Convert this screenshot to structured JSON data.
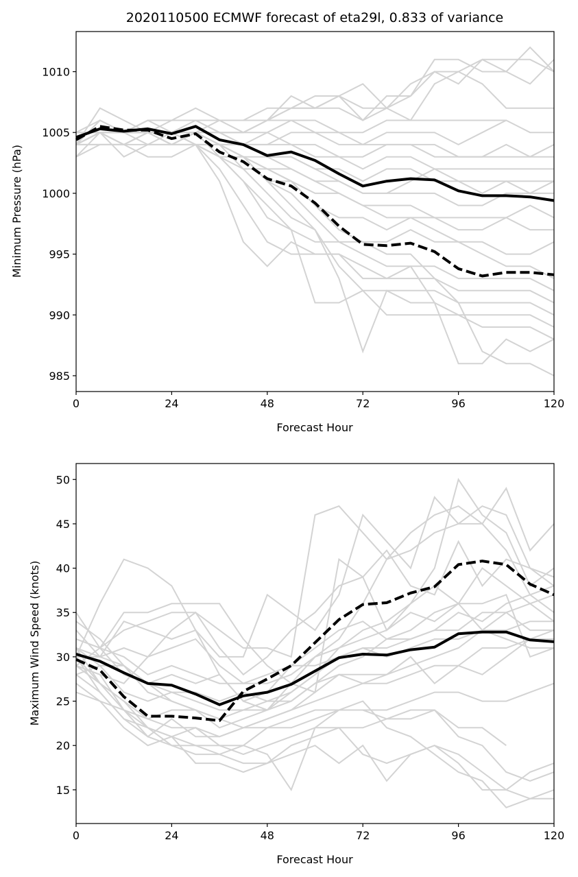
{
  "chart_data": [
    {
      "type": "line",
      "title": "2020110500 ECMWF forecast of eta29l, 0.833 of variance",
      "xlabel": "Forecast Hour",
      "ylabel": "Minimum Pressure (hPa)",
      "xlim": [
        0,
        120
      ],
      "ylim": [
        983.7,
        1013.3
      ],
      "xticks": [
        0,
        24,
        48,
        72,
        96,
        120
      ],
      "xtick_labels": [
        "0",
        "24",
        "48",
        "72",
        "96",
        "120"
      ],
      "yticks": [
        985,
        990,
        995,
        1000,
        1005,
        1010
      ],
      "ytick_labels": [
        "985",
        "990",
        "995",
        "1000",
        "1005",
        "1010"
      ],
      "grid": false,
      "x": [
        0,
        6,
        12,
        18,
        24,
        30,
        36,
        42,
        48,
        54,
        60,
        66,
        72,
        78,
        84,
        90,
        96,
        102,
        108,
        114,
        120
      ],
      "series": [
        {
          "name": "ensemble-mean",
          "style": "solid",
          "color": "#000000",
          "values": [
            1004.6,
            1005.3,
            1005.1,
            1005.3,
            1004.9,
            1005.5,
            1004.4,
            1004.0,
            1003.1,
            1003.4,
            1002.7,
            1001.6,
            1000.6,
            1001.0,
            1001.2,
            1001.1,
            1000.2,
            999.8,
            999.8,
            999.7,
            999.4
          ]
        },
        {
          "name": "reconstruction",
          "style": "dashed",
          "color": "#000000",
          "values": [
            1004.4,
            1005.5,
            1005.2,
            1005.2,
            1004.5,
            1004.9,
            1003.4,
            1002.6,
            1001.2,
            1000.6,
            999.2,
            997.3,
            995.8,
            995.7,
            995.9,
            995.2,
            993.8,
            993.2,
            993.5,
            993.5,
            993.3
          ]
        }
      ],
      "members_color": "#d3d3d3",
      "members": [
        [
          1004,
          1006,
          1005,
          1006,
          1006,
          1006,
          1006,
          1006,
          1006,
          1007,
          1007,
          1008,
          1007,
          1007,
          1009,
          1010,
          1010,
          1011,
          1011,
          1011,
          1010
        ],
        [
          1005,
          1005,
          1004,
          1005,
          1005,
          1005,
          1006,
          1006,
          1007,
          1007,
          1008,
          1008,
          1006,
          1008,
          1008,
          1011,
          1011,
          1010,
          1010,
          1012,
          1010
        ],
        [
          1005,
          1006,
          1005,
          1005,
          1006,
          1006,
          1005,
          1005,
          1006,
          1008,
          1007,
          1008,
          1009,
          1007,
          1008,
          1010,
          1009,
          1011,
          1010,
          1009,
          1011
        ],
        [
          1004,
          1005,
          1005,
          1006,
          1006,
          1007,
          1006,
          1006,
          1006,
          1007,
          1007,
          1007,
          1006,
          1007,
          1006,
          1009,
          1010,
          1009,
          1007,
          1007,
          1007
        ],
        [
          1005,
          1005,
          1005,
          1006,
          1006,
          1006,
          1006,
          1005,
          1005,
          1006,
          1006,
          1005,
          1005,
          1006,
          1006,
          1006,
          1006,
          1006,
          1006,
          null,
          null
        ],
        [
          1004,
          1006,
          1005,
          1006,
          1005,
          1006,
          1005,
          1005,
          1006,
          1006,
          1005,
          1005,
          1004,
          1005,
          1005,
          1005,
          1004,
          1005,
          1006,
          1005,
          1005
        ],
        [
          1004,
          1007,
          1006,
          1005,
          1004,
          1005,
          1005,
          1004,
          1004,
          1005,
          1005,
          1004,
          1004,
          1004,
          1004,
          1004,
          1003,
          1003,
          1004,
          1003,
          1004
        ],
        [
          1005,
          1005,
          1004,
          1005,
          1005,
          1005,
          1004,
          1004,
          1004,
          1004,
          1004,
          1003,
          1003,
          1004,
          1004,
          1003,
          1003,
          1003,
          1003,
          1003,
          1003
        ],
        [
          1004,
          1005,
          1003,
          1004,
          1005,
          1004,
          1004,
          1004,
          1005,
          1004,
          1003,
          1003,
          1002,
          1003,
          1003,
          1002,
          1002,
          1002,
          1002,
          1002,
          1002
        ],
        [
          1003,
          1004,
          1004,
          1003,
          1003,
          1004,
          1004,
          1003,
          1003,
          1003,
          1002,
          1002,
          1001,
          1002,
          1002,
          1001,
          1001,
          1000,
          1001,
          1001,
          1001
        ],
        [
          1004,
          1004,
          1004,
          1005,
          1004,
          1004,
          1003,
          1003,
          1002,
          1002,
          1001,
          1001,
          1000,
          1000,
          1000,
          1000,
          999,
          999,
          1000,
          1000,
          1000
        ],
        [
          1003,
          1005,
          1004,
          1004,
          1004,
          1005,
          1003,
          1002,
          1002,
          1001,
          1000,
          1000,
          999,
          999,
          999,
          998,
          998,
          998,
          998,
          999,
          998
        ],
        [
          1004,
          1004,
          1004,
          1005,
          1004,
          1005,
          1004,
          1003,
          1001,
          1001,
          999,
          998,
          998,
          997,
          998,
          998,
          997,
          997,
          998,
          997,
          997
        ],
        [
          1005,
          1005,
          1005,
          1004,
          1004,
          1004,
          1003,
          1001,
          999,
          997,
          996,
          996,
          996,
          996,
          997,
          996,
          996,
          996,
          995,
          995,
          996
        ],
        [
          1004,
          1005,
          1005,
          1005,
          1005,
          1004,
          1002,
          999,
          996,
          995,
          995,
          995,
          994,
          993,
          994,
          994,
          993,
          993,
          993,
          993,
          992
        ],
        [
          1004,
          1005,
          1004,
          1005,
          1005,
          1004,
          1001,
          996,
          994,
          996,
          995,
          995,
          993,
          993,
          993,
          993,
          992,
          992,
          992,
          992,
          991
        ],
        [
          1005,
          1005,
          1005,
          1005,
          1004,
          1004,
          1003,
          1001,
          998,
          997,
          991,
          991,
          992,
          992,
          992,
          992,
          991,
          991,
          991,
          991,
          990
        ],
        [
          1004,
          1005,
          1005,
          1005,
          1005,
          1005,
          1004,
          1002,
          1000,
          998,
          997,
          993,
          987,
          992,
          991,
          991,
          990,
          990,
          990,
          990,
          989
        ],
        [
          1005,
          1005,
          1005,
          1005,
          1005,
          1005,
          1004,
          1003,
          1001,
          999,
          997,
          994,
          992,
          990,
          990,
          990,
          990,
          989,
          989,
          989,
          988
        ],
        [
          1004,
          1005,
          1005,
          1005,
          1005,
          1005,
          1004,
          1003,
          1001,
          1000,
          998,
          996,
          995,
          994,
          994,
          991,
          986,
          986,
          988,
          987,
          988
        ],
        [
          1004,
          1005,
          1005,
          1005,
          1005,
          1005,
          1004,
          1003,
          1002,
          1001,
          999,
          997,
          996,
          995,
          995,
          993,
          991,
          987,
          986,
          986,
          985
        ],
        [
          1004,
          1005,
          1005,
          1005,
          1005,
          1005,
          1004,
          1004,
          1003,
          1002,
          1001,
          1000,
          999,
          998,
          998,
          997,
          996,
          995,
          994,
          994,
          993
        ],
        [
          1004,
          1005,
          1005,
          1005,
          1005,
          1005,
          1005,
          1004,
          1003,
          1003,
          1002,
          1001,
          1000,
          1000,
          1001,
          1002,
          1001,
          1001,
          1001,
          1000,
          1001
        ]
      ]
    },
    {
      "type": "line",
      "title": "",
      "xlabel": "Forecast Hour",
      "ylabel": "Maximum Wind Speed (knots)",
      "xlim": [
        0,
        120
      ],
      "ylim": [
        11.2,
        51.8
      ],
      "xticks": [
        0,
        24,
        48,
        72,
        96,
        120
      ],
      "xtick_labels": [
        "0",
        "24",
        "48",
        "72",
        "96",
        "120"
      ],
      "yticks": [
        15,
        20,
        25,
        30,
        35,
        40,
        45,
        50
      ],
      "ytick_labels": [
        "15",
        "20",
        "25",
        "30",
        "35",
        "40",
        "45",
        "50"
      ],
      "grid": false,
      "x": [
        0,
        6,
        12,
        18,
        24,
        30,
        36,
        42,
        48,
        54,
        60,
        66,
        72,
        78,
        84,
        90,
        96,
        102,
        108,
        114,
        120
      ],
      "series": [
        {
          "name": "ensemble-mean",
          "style": "solid",
          "color": "#000000",
          "values": [
            30.3,
            29.5,
            28.2,
            27.0,
            26.8,
            25.8,
            24.6,
            25.6,
            26.0,
            26.9,
            28.4,
            29.9,
            30.3,
            30.2,
            30.8,
            31.1,
            32.6,
            32.8,
            32.8,
            31.9,
            31.7
          ]
        },
        {
          "name": "reconstruction",
          "style": "dashed",
          "color": "#000000",
          "values": [
            29.7,
            28.5,
            25.5,
            23.3,
            23.3,
            23.1,
            22.8,
            26.1,
            27.5,
            29.0,
            31.6,
            34.2,
            35.9,
            36.1,
            37.2,
            37.9,
            40.4,
            40.8,
            40.4,
            38.2,
            37.0
          ]
        }
      ],
      "members_color": "#d3d3d3",
      "members": [
        [
          30,
          36,
          41,
          40,
          38,
          33,
          28,
          25,
          24,
          27,
          30,
          32,
          36,
          41,
          44,
          46,
          47,
          45,
          49,
          42,
          45
        ],
        [
          32,
          31,
          35,
          35,
          36,
          36,
          36,
          32,
          29,
          27,
          26,
          41,
          39,
          33,
          36,
          40,
          50,
          46,
          44,
          38,
          40
        ],
        [
          29,
          31,
          33,
          34,
          35,
          35,
          33,
          31,
          31,
          30,
          46,
          47,
          44,
          41,
          42,
          44,
          45,
          47,
          46,
          40,
          38
        ],
        [
          31,
          30,
          34,
          33,
          32,
          33,
          30,
          30,
          37,
          35,
          33,
          37,
          46,
          43,
          40,
          48,
          45,
          45,
          42,
          37,
          35
        ],
        [
          33,
          30,
          31,
          30,
          33,
          35,
          31,
          28,
          30,
          33,
          35,
          38,
          39,
          42,
          38,
          37,
          43,
          38,
          41,
          40,
          39
        ],
        [
          29,
          28,
          27,
          30,
          31,
          32,
          29,
          27,
          27,
          28,
          30,
          31,
          33,
          34,
          36,
          38,
          36,
          40,
          38,
          36,
          34
        ],
        [
          31,
          29,
          29,
          27,
          28,
          27,
          28,
          25,
          26,
          29,
          31,
          33,
          34,
          32,
          33,
          35,
          36,
          33,
          35,
          33,
          33
        ],
        [
          28,
          29,
          26,
          25,
          26,
          26,
          25,
          26,
          25,
          26,
          28,
          30,
          31,
          30,
          31,
          32,
          32,
          33,
          32,
          31,
          31
        ],
        [
          30,
          27,
          25,
          23,
          24,
          24,
          23,
          24,
          24,
          25,
          27,
          28,
          28,
          28,
          29,
          30,
          31,
          33,
          33,
          34,
          34
        ],
        [
          29,
          28,
          24,
          23,
          22,
          22,
          21,
          22,
          23,
          24,
          25,
          26,
          27,
          27,
          28,
          29,
          29,
          31,
          31,
          32,
          32
        ],
        [
          26,
          25,
          24,
          21,
          23,
          21,
          21,
          22,
          22,
          23,
          24,
          24,
          24,
          24,
          25,
          26,
          26,
          25,
          25,
          26,
          27
        ],
        [
          30,
          26,
          23,
          22,
          21,
          22,
          20,
          20,
          22,
          22,
          23,
          24,
          24,
          23,
          23,
          24,
          22,
          22,
          20,
          null,
          null
        ],
        [
          31,
          27,
          25,
          22,
          21,
          20,
          20,
          19,
          20,
          21,
          22,
          22,
          19,
          18,
          19,
          20,
          19,
          17,
          15,
          14,
          14
        ],
        [
          29,
          27,
          24,
          22,
          20,
          20,
          19,
          20,
          19,
          15,
          22,
          24,
          25,
          22,
          21,
          19,
          17,
          16,
          13,
          14,
          15
        ],
        [
          28,
          26,
          23,
          21,
          20,
          19,
          19,
          18,
          18,
          19,
          20,
          18,
          20,
          16,
          19,
          20,
          18,
          15,
          15,
          17,
          18
        ],
        [
          27,
          25,
          22,
          20,
          21,
          18,
          18,
          17,
          18,
          20,
          21,
          22,
          22,
          23,
          24,
          24,
          21,
          20,
          17,
          16,
          17
        ],
        [
          32,
          31,
          30,
          28,
          29,
          28,
          27,
          27,
          28,
          29,
          29,
          30,
          31,
          31,
          32,
          33,
          33,
          35,
          35,
          36,
          37
        ],
        [
          30,
          30,
          29,
          27,
          26,
          25,
          24,
          24,
          25,
          25,
          27,
          29,
          30,
          32,
          32,
          33,
          35,
          34,
          36,
          37,
          38
        ],
        [
          34,
          32,
          29,
          26,
          25,
          24,
          22,
          23,
          24,
          26,
          28,
          31,
          32,
          33,
          35,
          34,
          36,
          36,
          37,
          30,
          31
        ],
        [
          35,
          31,
          28,
          27,
          25,
          24,
          23,
          22,
          23,
          24,
          26,
          28,
          27,
          28,
          30,
          27,
          29,
          28,
          30,
          32,
          33
        ]
      ]
    }
  ]
}
